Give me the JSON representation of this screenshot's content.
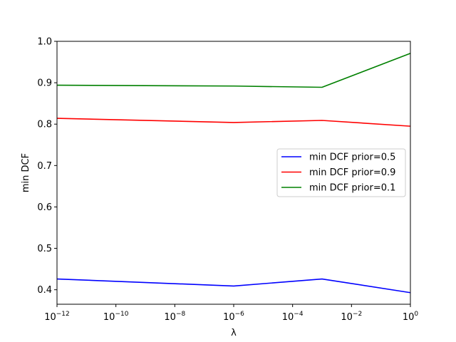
{
  "chart_data": {
    "type": "line",
    "xlabel": "λ",
    "ylabel": "min DCF",
    "xscale": "log",
    "xlim": [
      1e-12,
      1
    ],
    "ylim": [
      0.365,
      1.0
    ],
    "x": [
      1e-12,
      1e-06,
      0.001,
      1
    ],
    "x_ticks": [
      {
        "base": "10",
        "exp": "−12",
        "value": 1e-12
      },
      {
        "base": "10",
        "exp": "−10",
        "value": 1e-10
      },
      {
        "base": "10",
        "exp": "−8",
        "value": 1e-08
      },
      {
        "base": "10",
        "exp": "−6",
        "value": 1e-06
      },
      {
        "base": "10",
        "exp": "−4",
        "value": 0.0001
      },
      {
        "base": "10",
        "exp": "−2",
        "value": 0.01
      },
      {
        "base": "10",
        "exp": "0",
        "value": 1
      }
    ],
    "y_ticks": [
      "0.4",
      "0.5",
      "0.6",
      "0.7",
      "0.8",
      "0.9",
      "1.0"
    ],
    "grid": false,
    "legend_position": "center-right",
    "series": [
      {
        "name": "min DCF prior=0.5",
        "color": "#0000ff",
        "values": [
          0.426,
          0.409,
          0.426,
          0.393
        ]
      },
      {
        "name": "min DCF prior=0.9",
        "color": "#ff0000",
        "values": [
          0.814,
          0.804,
          0.809,
          0.795
        ]
      },
      {
        "name": "min DCF prior=0.1",
        "color": "#008000",
        "values": [
          0.894,
          0.892,
          0.889,
          0.971
        ]
      }
    ]
  }
}
